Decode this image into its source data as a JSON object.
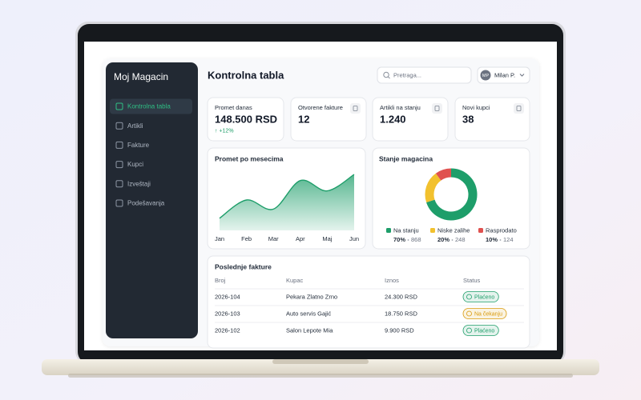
{
  "app": {
    "title": "Moj Magacin",
    "nav": [
      "Kontrolna tabla",
      "Artikli",
      "Fakture",
      "Kupci",
      "Izveštaji",
      "Podešavanja"
    ]
  },
  "header": {
    "title": "Kontrolna tabla",
    "search_placeholder": "Pretraga...",
    "user_initials": "MP",
    "user_name": "Milan P."
  },
  "stats": [
    {
      "label": "Promet danas",
      "value": "148.500 RSD",
      "change": "↑ +12%"
    },
    {
      "label": "Otvorene fakture",
      "value": "12"
    },
    {
      "label": "Artikli na stanju",
      "value": "1.240"
    },
    {
      "label": "Novi kupci",
      "value": "38"
    }
  ],
  "sales_chart": {
    "type": "area",
    "title": "Promet po mesecima",
    "categories": [
      "Jan",
      "Feb",
      "Mar",
      "Apr",
      "Maj",
      "Jun"
    ],
    "values": [
      20,
      50,
      35,
      82,
      65,
      92
    ],
    "ylim": [
      0,
      100
    ],
    "color": "#1e9e6a"
  },
  "stock_chart": {
    "type": "donut",
    "title": "Stanje magacina",
    "categories": [
      "Na stanju",
      "Niske zalihe",
      "Rasprodato"
    ],
    "values": [
      70,
      20,
      10
    ],
    "value_labels": [
      "70%",
      "20%",
      "10%"
    ],
    "counts": [
      868,
      248,
      124
    ],
    "colors": [
      "#1e9e6a",
      "#f2c12e",
      "#e0514f"
    ]
  },
  "invoices": {
    "title": "Poslednje fakture",
    "columns": [
      "Broj",
      "Kupac",
      "Iznos",
      "Status"
    ],
    "rows": [
      [
        "2026-104",
        "Pekara Zlatno Zrno",
        "24.300 RSD",
        "Plaćeno"
      ],
      [
        "2026-103",
        "Auto servis Gajić",
        "18.750 RSD",
        "Na čekanju"
      ],
      [
        "2026-102",
        "Salon Lepote Mia",
        "9.900 RSD",
        "Plaćeno"
      ]
    ],
    "status_colors": [
      "#1e9e6a",
      "#d99a0b",
      "#1e9e6a"
    ]
  }
}
